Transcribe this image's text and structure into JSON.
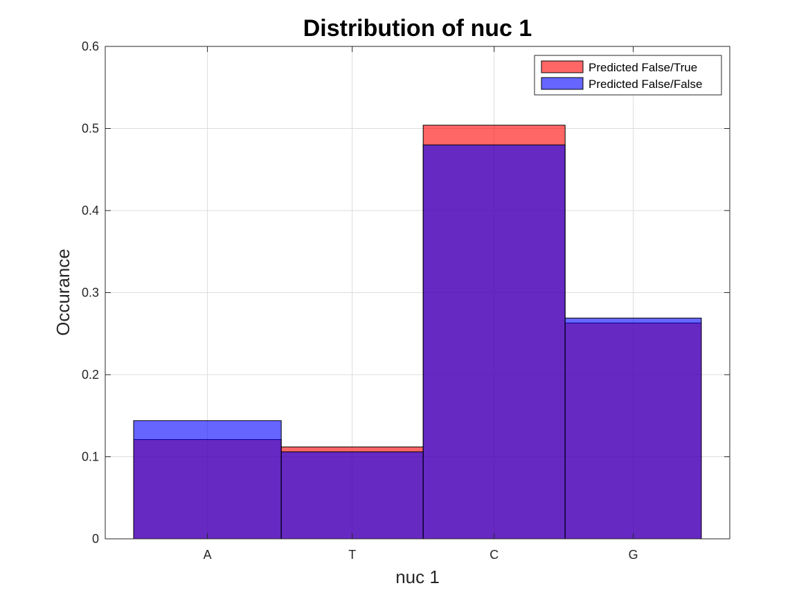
{
  "chart_data": {
    "type": "bar",
    "title": "Distribution of nuc 1",
    "xlabel": "nuc 1",
    "ylabel": "Occurance",
    "categories": [
      "A",
      "T",
      "C",
      "G"
    ],
    "category_bounds": [
      [
        0,
        1.04
      ],
      [
        1.04,
        2.04
      ],
      [
        2.04,
        3.04
      ],
      [
        3.04,
        4.0
      ]
    ],
    "xlim": [
      -0.2,
      4.2
    ],
    "ylim": [
      0,
      0.6
    ],
    "yticks": [
      "0",
      "0.1",
      "0.2",
      "0.3",
      "0.4",
      "0.5",
      "0.6"
    ],
    "ytick_values": [
      0,
      0.1,
      0.2,
      0.3,
      0.4,
      0.5,
      0.6
    ],
    "grid": true,
    "legend_position": "top-right",
    "series": [
      {
        "name": "Predicted False/True",
        "color": "#ff0000",
        "opacity": 0.6,
        "values": [
          0.121,
          0.112,
          0.504,
          0.263
        ]
      },
      {
        "name": "Predicted False/False",
        "color": "#0000ff",
        "opacity": 0.6,
        "values": [
          0.144,
          0.106,
          0.48,
          0.269
        ]
      }
    ]
  }
}
